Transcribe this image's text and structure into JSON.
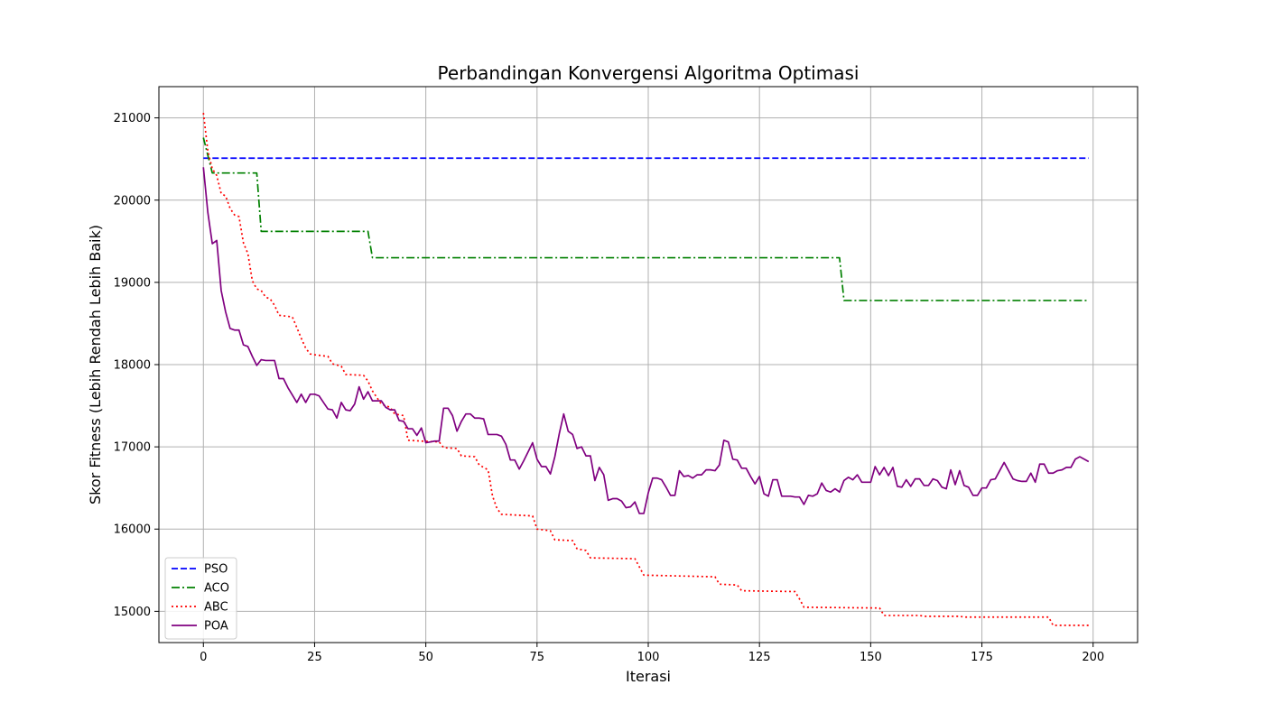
{
  "chart_data": {
    "type": "line",
    "title": "Perbandingan Konvergensi Algoritma Optimasi",
    "xlabel": "Iterasi",
    "ylabel": "Skor Fitness (Lebih Rendah Lebih Baik)",
    "xlim": [
      -10,
      210
    ],
    "ylim": [
      14620,
      21380
    ],
    "xticks": [
      0,
      25,
      50,
      75,
      100,
      125,
      150,
      175,
      200
    ],
    "yticks": [
      15000,
      16000,
      17000,
      18000,
      19000,
      20000,
      21000
    ],
    "grid": true,
    "legend_position": "lower-left",
    "series": [
      {
        "name": "PSO",
        "color": "#0000ff",
        "style": "dashed",
        "points": [
          [
            0,
            20510
          ],
          [
            199,
            20510
          ]
        ]
      },
      {
        "name": "ACO",
        "color": "#008000",
        "style": "dashdot",
        "points": [
          [
            0,
            20760
          ],
          [
            2,
            20330
          ],
          [
            12,
            20330
          ],
          [
            13,
            19620
          ],
          [
            37,
            19620
          ],
          [
            38,
            19300
          ],
          [
            143,
            19300
          ],
          [
            144,
            18780
          ],
          [
            199,
            18780
          ]
        ]
      },
      {
        "name": "ABC",
        "color": "#ff0000",
        "style": "dotted",
        "points": [
          [
            0,
            21060
          ],
          [
            1,
            20600
          ],
          [
            2,
            20380
          ],
          [
            3,
            20300
          ],
          [
            4,
            20080
          ],
          [
            5,
            20050
          ],
          [
            6,
            19900
          ],
          [
            7,
            19820
          ],
          [
            8,
            19800
          ],
          [
            9,
            19480
          ],
          [
            10,
            19350
          ],
          [
            11,
            19020
          ],
          [
            12,
            18920
          ],
          [
            13,
            18900
          ],
          [
            14,
            18820
          ],
          [
            15,
            18800
          ],
          [
            16,
            18720
          ],
          [
            17,
            18600
          ],
          [
            20,
            18580
          ],
          [
            21,
            18450
          ],
          [
            22,
            18320
          ],
          [
            23,
            18200
          ],
          [
            24,
            18130
          ],
          [
            25,
            18120
          ],
          [
            28,
            18100
          ],
          [
            29,
            18010
          ],
          [
            31,
            17980
          ],
          [
            32,
            17880
          ],
          [
            36,
            17870
          ],
          [
            37,
            17800
          ],
          [
            38,
            17680
          ],
          [
            39,
            17600
          ],
          [
            40,
            17520
          ],
          [
            42,
            17480
          ],
          [
            43,
            17400
          ],
          [
            45,
            17380
          ],
          [
            46,
            17080
          ],
          [
            49,
            17070
          ],
          [
            53,
            17060
          ],
          [
            54,
            16990
          ],
          [
            57,
            16980
          ],
          [
            58,
            16890
          ],
          [
            61,
            16880
          ],
          [
            62,
            16780
          ],
          [
            64,
            16720
          ],
          [
            65,
            16400
          ],
          [
            66,
            16250
          ],
          [
            67,
            16180
          ],
          [
            74,
            16160
          ],
          [
            75,
            16000
          ],
          [
            78,
            15980
          ],
          [
            79,
            15870
          ],
          [
            83,
            15860
          ],
          [
            84,
            15760
          ],
          [
            86,
            15740
          ],
          [
            87,
            15650
          ],
          [
            97,
            15640
          ],
          [
            98,
            15540
          ],
          [
            99,
            15440
          ],
          [
            115,
            15420
          ],
          [
            116,
            15330
          ],
          [
            120,
            15320
          ],
          [
            121,
            15250
          ],
          [
            133,
            15240
          ],
          [
            134,
            15150
          ],
          [
            135,
            15050
          ],
          [
            152,
            15040
          ],
          [
            153,
            14950
          ],
          [
            161,
            14950
          ],
          [
            162,
            14940
          ],
          [
            170,
            14940
          ],
          [
            171,
            14930
          ],
          [
            190,
            14930
          ],
          [
            191,
            14830
          ],
          [
            199,
            14830
          ]
        ]
      },
      {
        "name": "POA",
        "color": "#800080",
        "style": "solid",
        "points": [
          [
            0,
            20400
          ],
          [
            1,
            19850
          ],
          [
            2,
            19470
          ],
          [
            3,
            19510
          ],
          [
            4,
            18900
          ],
          [
            5,
            18640
          ],
          [
            6,
            18440
          ],
          [
            7,
            18420
          ],
          [
            8,
            18420
          ],
          [
            9,
            18240
          ],
          [
            10,
            18220
          ],
          [
            11,
            18100
          ],
          [
            12,
            17990
          ],
          [
            13,
            18060
          ],
          [
            14,
            18050
          ],
          [
            15,
            18050
          ],
          [
            16,
            18050
          ],
          [
            17,
            17830
          ],
          [
            18,
            17830
          ],
          [
            19,
            17720
          ],
          [
            20,
            17630
          ],
          [
            21,
            17540
          ],
          [
            22,
            17640
          ],
          [
            23,
            17540
          ],
          [
            24,
            17640
          ],
          [
            25,
            17640
          ],
          [
            26,
            17620
          ],
          [
            27,
            17540
          ],
          [
            28,
            17460
          ],
          [
            29,
            17450
          ],
          [
            30,
            17350
          ],
          [
            31,
            17540
          ],
          [
            32,
            17450
          ],
          [
            33,
            17440
          ],
          [
            34,
            17520
          ],
          [
            35,
            17730
          ],
          [
            36,
            17580
          ],
          [
            37,
            17670
          ],
          [
            38,
            17560
          ],
          [
            39,
            17560
          ],
          [
            40,
            17560
          ],
          [
            41,
            17480
          ],
          [
            42,
            17450
          ],
          [
            43,
            17450
          ],
          [
            44,
            17320
          ],
          [
            45,
            17310
          ],
          [
            46,
            17220
          ],
          [
            47,
            17220
          ],
          [
            48,
            17140
          ],
          [
            49,
            17230
          ],
          [
            50,
            17050
          ],
          [
            51,
            17060
          ],
          [
            52,
            17070
          ],
          [
            53,
            17070
          ],
          [
            54,
            17470
          ],
          [
            55,
            17470
          ],
          [
            56,
            17380
          ],
          [
            57,
            17190
          ],
          [
            58,
            17310
          ],
          [
            59,
            17400
          ],
          [
            60,
            17400
          ],
          [
            61,
            17350
          ],
          [
            62,
            17350
          ],
          [
            63,
            17340
          ],
          [
            64,
            17150
          ],
          [
            65,
            17150
          ],
          [
            66,
            17150
          ],
          [
            67,
            17130
          ],
          [
            68,
            17030
          ],
          [
            69,
            16840
          ],
          [
            70,
            16840
          ],
          [
            71,
            16730
          ],
          [
            72,
            16830
          ],
          [
            73,
            16940
          ],
          [
            74,
            17050
          ],
          [
            75,
            16850
          ],
          [
            76,
            16760
          ],
          [
            77,
            16760
          ],
          [
            78,
            16670
          ],
          [
            79,
            16880
          ],
          [
            80,
            17160
          ],
          [
            81,
            17400
          ],
          [
            82,
            17190
          ],
          [
            83,
            17150
          ],
          [
            84,
            16980
          ],
          [
            85,
            17000
          ],
          [
            86,
            16890
          ],
          [
            87,
            16890
          ],
          [
            88,
            16590
          ],
          [
            89,
            16750
          ],
          [
            90,
            16660
          ],
          [
            91,
            16350
          ],
          [
            92,
            16370
          ],
          [
            93,
            16370
          ],
          [
            94,
            16340
          ],
          [
            95,
            16260
          ],
          [
            96,
            16270
          ],
          [
            97,
            16330
          ],
          [
            98,
            16190
          ],
          [
            99,
            16190
          ],
          [
            100,
            16440
          ],
          [
            101,
            16620
          ],
          [
            102,
            16620
          ],
          [
            103,
            16600
          ],
          [
            104,
            16510
          ],
          [
            105,
            16410
          ],
          [
            106,
            16410
          ],
          [
            107,
            16710
          ],
          [
            108,
            16640
          ],
          [
            109,
            16650
          ],
          [
            110,
            16620
          ],
          [
            111,
            16660
          ],
          [
            112,
            16660
          ],
          [
            113,
            16720
          ],
          [
            114,
            16720
          ],
          [
            115,
            16710
          ],
          [
            116,
            16780
          ],
          [
            117,
            17080
          ],
          [
            118,
            17060
          ],
          [
            119,
            16850
          ],
          [
            120,
            16840
          ],
          [
            121,
            16740
          ],
          [
            122,
            16740
          ],
          [
            123,
            16640
          ],
          [
            124,
            16550
          ],
          [
            125,
            16640
          ],
          [
            126,
            16430
          ],
          [
            127,
            16400
          ],
          [
            128,
            16600
          ],
          [
            129,
            16600
          ],
          [
            130,
            16400
          ],
          [
            131,
            16400
          ],
          [
            132,
            16400
          ],
          [
            133,
            16390
          ],
          [
            134,
            16390
          ],
          [
            135,
            16300
          ],
          [
            136,
            16410
          ],
          [
            137,
            16400
          ],
          [
            138,
            16430
          ],
          [
            139,
            16560
          ],
          [
            140,
            16470
          ],
          [
            141,
            16450
          ],
          [
            142,
            16490
          ],
          [
            143,
            16450
          ],
          [
            144,
            16590
          ],
          [
            145,
            16630
          ],
          [
            146,
            16600
          ],
          [
            147,
            16660
          ],
          [
            148,
            16570
          ],
          [
            149,
            16570
          ],
          [
            150,
            16570
          ],
          [
            151,
            16760
          ],
          [
            152,
            16660
          ],
          [
            153,
            16750
          ],
          [
            154,
            16650
          ],
          [
            155,
            16750
          ],
          [
            156,
            16520
          ],
          [
            157,
            16510
          ],
          [
            158,
            16600
          ],
          [
            159,
            16520
          ],
          [
            160,
            16610
          ],
          [
            161,
            16610
          ],
          [
            162,
            16530
          ],
          [
            163,
            16530
          ],
          [
            164,
            16610
          ],
          [
            165,
            16590
          ],
          [
            166,
            16510
          ],
          [
            167,
            16490
          ],
          [
            168,
            16720
          ],
          [
            169,
            16540
          ],
          [
            170,
            16710
          ],
          [
            171,
            16530
          ],
          [
            172,
            16510
          ],
          [
            173,
            16410
          ],
          [
            174,
            16410
          ],
          [
            175,
            16500
          ],
          [
            176,
            16500
          ],
          [
            177,
            16600
          ],
          [
            178,
            16610
          ],
          [
            179,
            16710
          ],
          [
            180,
            16810
          ],
          [
            181,
            16710
          ],
          [
            182,
            16610
          ],
          [
            183,
            16590
          ],
          [
            184,
            16580
          ],
          [
            185,
            16580
          ],
          [
            186,
            16680
          ],
          [
            187,
            16570
          ],
          [
            188,
            16790
          ],
          [
            189,
            16790
          ],
          [
            190,
            16680
          ],
          [
            191,
            16680
          ],
          [
            192,
            16710
          ],
          [
            193,
            16720
          ],
          [
            194,
            16750
          ],
          [
            195,
            16750
          ],
          [
            196,
            16850
          ],
          [
            197,
            16880
          ],
          [
            198,
            16850
          ],
          [
            199,
            16820
          ]
        ]
      }
    ]
  }
}
